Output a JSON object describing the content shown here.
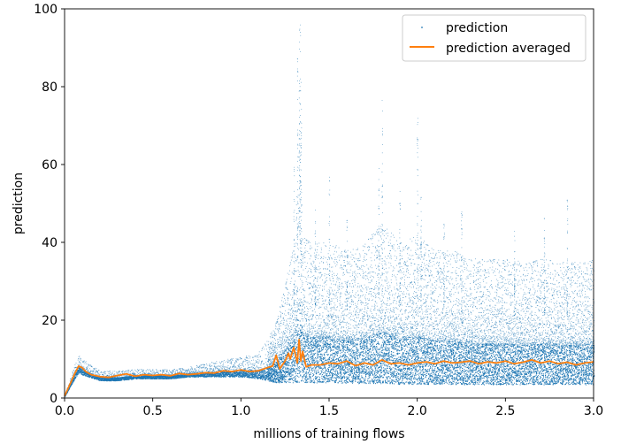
{
  "chart_data": {
    "type": "scatter",
    "xlabel": "millions of training flows",
    "ylabel": "prediction",
    "xlim": [
      0.0,
      3.0
    ],
    "ylim": [
      0,
      100
    ],
    "x_ticks": [
      "0.0",
      "0.5",
      "1.0",
      "1.5",
      "2.0",
      "2.5",
      "3.0"
    ],
    "y_ticks": [
      "0",
      "20",
      "40",
      "60",
      "80",
      "100"
    ],
    "x_tick_values": [
      0.0,
      0.5,
      1.0,
      1.5,
      2.0,
      2.5,
      3.0
    ],
    "y_tick_values": [
      0,
      20,
      40,
      60,
      80,
      100
    ],
    "legend_position": "top-right",
    "grid": false,
    "series": [
      {
        "name": "prediction",
        "style": "points",
        "color": "#1f77b4",
        "envelope": {
          "x": [
            0.0,
            0.05,
            0.08,
            0.1,
            0.2,
            0.3,
            0.4,
            0.5,
            0.6,
            0.7,
            0.8,
            0.9,
            1.0,
            1.1,
            1.15,
            1.2,
            1.25,
            1.3,
            1.33,
            1.35,
            1.4,
            1.5,
            1.6,
            1.7,
            1.8,
            1.9,
            2.0,
            2.1,
            2.2,
            2.3,
            2.4,
            2.5,
            2.6,
            2.7,
            2.8,
            2.9,
            3.0
          ],
          "low": [
            0.5,
            4.5,
            6.5,
            6.0,
            4.5,
            4.5,
            5.0,
            5.0,
            5.0,
            5.5,
            5.5,
            5.5,
            5.5,
            5.0,
            4.5,
            4.0,
            4.0,
            4.0,
            4.0,
            4.0,
            4.0,
            4.0,
            3.8,
            3.8,
            3.8,
            3.6,
            3.6,
            3.6,
            3.5,
            3.5,
            3.5,
            3.5,
            3.5,
            3.5,
            3.5,
            3.5,
            3.5
          ],
          "high": [
            1.0,
            8.0,
            11.0,
            10.0,
            7.0,
            7.0,
            7.5,
            7.5,
            7.5,
            8.0,
            9.0,
            10.0,
            10.5,
            12.0,
            15.0,
            20.0,
            30.0,
            40.0,
            70.0,
            42.0,
            40.0,
            40.0,
            38.0,
            40.0,
            45.0,
            40.0,
            42.0,
            38.0,
            38.0,
            36.0,
            36.0,
            36.0,
            35.0,
            36.0,
            35.0,
            35.0,
            36.0
          ]
        },
        "peaks": [
          [
            1.335,
            100.0
          ],
          [
            1.33,
            95.0
          ],
          [
            1.32,
            88.0
          ],
          [
            1.34,
            82.0
          ],
          [
            1.8,
            78.0
          ],
          [
            2.0,
            72.0
          ],
          [
            1.3,
            60.0
          ],
          [
            1.5,
            57.0
          ],
          [
            1.78,
            60.0
          ],
          [
            1.9,
            54.0
          ],
          [
            2.02,
            52.0
          ],
          [
            2.25,
            48.0
          ],
          [
            2.72,
            47.0
          ],
          [
            2.85,
            52.0
          ],
          [
            1.42,
            49.0
          ],
          [
            1.6,
            46.0
          ],
          [
            2.15,
            45.0
          ],
          [
            2.55,
            44.0
          ]
        ]
      },
      {
        "name": "prediction averaged",
        "style": "line",
        "color": "#ff7f0e",
        "x": [
          0.0,
          0.03,
          0.06,
          0.08,
          0.1,
          0.12,
          0.15,
          0.2,
          0.25,
          0.3,
          0.35,
          0.4,
          0.45,
          0.5,
          0.55,
          0.6,
          0.65,
          0.7,
          0.75,
          0.8,
          0.85,
          0.9,
          0.95,
          1.0,
          1.05,
          1.1,
          1.15,
          1.18,
          1.2,
          1.22,
          1.25,
          1.27,
          1.28,
          1.3,
          1.32,
          1.33,
          1.34,
          1.35,
          1.37,
          1.4,
          1.45,
          1.5,
          1.55,
          1.6,
          1.65,
          1.7,
          1.75,
          1.8,
          1.85,
          1.9,
          1.95,
          2.0,
          2.05,
          2.1,
          2.15,
          2.2,
          2.25,
          2.3,
          2.35,
          2.4,
          2.45,
          2.5,
          2.55,
          2.6,
          2.65,
          2.7,
          2.75,
          2.8,
          2.85,
          2.9,
          2.95,
          3.0
        ],
        "y": [
          0.5,
          3.5,
          6.5,
          8.2,
          7.8,
          6.8,
          6.0,
          5.5,
          5.3,
          5.8,
          6.2,
          5.6,
          6.0,
          5.8,
          6.0,
          5.7,
          6.3,
          6.0,
          6.2,
          6.5,
          6.4,
          7.0,
          6.8,
          7.2,
          6.8,
          7.0,
          7.8,
          8.2,
          11.0,
          7.5,
          9.5,
          11.5,
          10.0,
          13.0,
          9.0,
          15.0,
          9.5,
          12.0,
          8.0,
          8.5,
          8.5,
          9.0,
          8.8,
          9.5,
          8.3,
          9.0,
          8.5,
          9.8,
          8.8,
          9.0,
          8.5,
          9.0,
          9.3,
          8.8,
          9.5,
          9.0,
          9.2,
          9.5,
          8.8,
          9.3,
          9.0,
          9.5,
          8.8,
          9.2,
          9.8,
          9.0,
          9.5,
          8.8,
          9.2,
          8.5,
          9.0,
          9.3
        ]
      }
    ]
  }
}
